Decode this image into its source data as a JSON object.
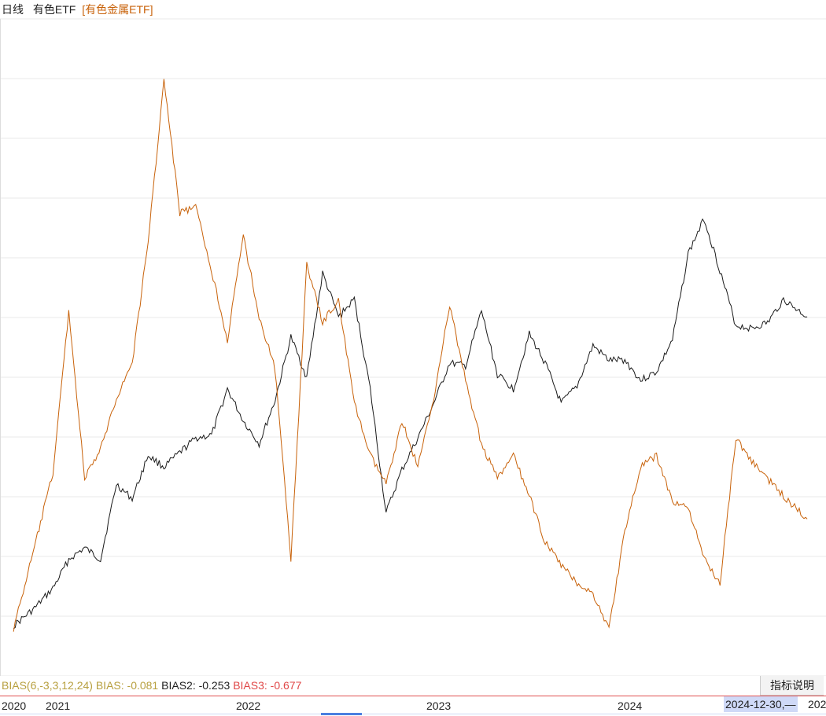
{
  "header": {
    "period": "日线",
    "name": "有色ETF",
    "compare": "[有色金属ETF]"
  },
  "indicator": {
    "name": "BIAS(6,-3,3,12,24)",
    "bias1": "BIAS: -0.081",
    "bias2": "BIAS2: -0.253",
    "bias3": "BIAS3: -0.677",
    "help_label": "指标说明"
  },
  "xaxis": {
    "ticks": [
      "2020",
      "2021",
      "2022",
      "2023",
      "2024",
      "202"
    ],
    "cursor_date": "2024-12-30,—"
  },
  "colors": {
    "primary_series": "#1a1a1a",
    "compare_series": "#c8620a",
    "grid": "#e8e8e8",
    "axis_line": "#e05050",
    "cursor_highlight": "#cfd9f7"
  },
  "chart_data": {
    "type": "line",
    "x_start": "2020",
    "x_end": "2024-12-30",
    "x_ticks": [
      "2020",
      "2021",
      "2022",
      "2023",
      "2024"
    ],
    "grid": "horizontal",
    "series": [
      {
        "name": "有色ETF",
        "color": "#1a1a1a",
        "points": [
          [
            "2020-11",
            0.005
          ],
          [
            "2020-12",
            0.035
          ],
          [
            "2021-01",
            0.07
          ],
          [
            "2021-02",
            0.12
          ],
          [
            "2021-03",
            0.14
          ],
          [
            "2021-04",
            0.12
          ],
          [
            "2021-05",
            0.25
          ],
          [
            "2021-06",
            0.225
          ],
          [
            "2021-07",
            0.3
          ],
          [
            "2021-08",
            0.28
          ],
          [
            "2021-09",
            0.305
          ],
          [
            "2021-10",
            0.33
          ],
          [
            "2021-11",
            0.335
          ],
          [
            "2021-12",
            0.415
          ],
          [
            "2022-01",
            0.36
          ],
          [
            "2022-02",
            0.32
          ],
          [
            "2022-03",
            0.395
          ],
          [
            "2022-04",
            0.505
          ],
          [
            "2022-05",
            0.435
          ],
          [
            "2022-06",
            0.615
          ],
          [
            "2022-07",
            0.54
          ],
          [
            "2022-08",
            0.57
          ],
          [
            "2022-09",
            0.415
          ],
          [
            "2022-10",
            0.2
          ],
          [
            "2022-11",
            0.275
          ],
          [
            "2022-12",
            0.33
          ],
          [
            "2023-01",
            0.39
          ],
          [
            "2023-02",
            0.46
          ],
          [
            "2023-03",
            0.455
          ],
          [
            "2023-04",
            0.55
          ],
          [
            "2023-05",
            0.44
          ],
          [
            "2023-06",
            0.415
          ],
          [
            "2023-07",
            0.51
          ],
          [
            "2023-08",
            0.46
          ],
          [
            "2023-09",
            0.39
          ],
          [
            "2023-10",
            0.42
          ],
          [
            "2023-11",
            0.49
          ],
          [
            "2023-12",
            0.465
          ],
          [
            "2024-01",
            0.465
          ],
          [
            "2024-02",
            0.43
          ],
          [
            "2024-03",
            0.445
          ],
          [
            "2024-04",
            0.5
          ],
          [
            "2024-05",
            0.65
          ],
          [
            "2024-06",
            0.71
          ],
          [
            "2024-07",
            0.62
          ],
          [
            "2024-08",
            0.525
          ],
          [
            "2024-09",
            0.52
          ],
          [
            "2024-10",
            0.53
          ],
          [
            "2024-11",
            0.57
          ],
          [
            "2024-12-30",
            0.54
          ]
        ]
      },
      {
        "name": "有色金属ETF",
        "color": "#c8620a",
        "points": [
          [
            "2020-11",
            0.0
          ],
          [
            "2020-12",
            0.14
          ],
          [
            "2021-01",
            0.27
          ],
          [
            "2021-02",
            0.55
          ],
          [
            "2021-03",
            0.26
          ],
          [
            "2021-04",
            0.31
          ],
          [
            "2021-05",
            0.4
          ],
          [
            "2021-06",
            0.46
          ],
          [
            "2021-07",
            0.67
          ],
          [
            "2021-08",
            0.95
          ],
          [
            "2021-09",
            0.72
          ],
          [
            "2021-10",
            0.73
          ],
          [
            "2021-11",
            0.62
          ],
          [
            "2021-12",
            0.5
          ],
          [
            "2022-01",
            0.68
          ],
          [
            "2022-02",
            0.54
          ],
          [
            "2022-03",
            0.45
          ],
          [
            "2022-04",
            0.12
          ],
          [
            "2022-05",
            0.63
          ],
          [
            "2022-06",
            0.53
          ],
          [
            "2022-07",
            0.57
          ],
          [
            "2022-08",
            0.39
          ],
          [
            "2022-09",
            0.3
          ],
          [
            "2022-10",
            0.25
          ],
          [
            "2022-11",
            0.36
          ],
          [
            "2022-12",
            0.28
          ],
          [
            "2023-01",
            0.4
          ],
          [
            "2023-02",
            0.56
          ],
          [
            "2023-03",
            0.43
          ],
          [
            "2023-04",
            0.32
          ],
          [
            "2023-05",
            0.26
          ],
          [
            "2023-06",
            0.3
          ],
          [
            "2023-07",
            0.23
          ],
          [
            "2023-08",
            0.15
          ],
          [
            "2023-09",
            0.11
          ],
          [
            "2023-10",
            0.08
          ],
          [
            "2023-11",
            0.06
          ],
          [
            "2023-12",
            0.0
          ],
          [
            "2024-01",
            0.17
          ],
          [
            "2024-02",
            0.28
          ],
          [
            "2024-03",
            0.3
          ],
          [
            "2024-04",
            0.22
          ],
          [
            "2024-05",
            0.21
          ],
          [
            "2024-06",
            0.12
          ],
          [
            "2024-07",
            0.08
          ],
          [
            "2024-08",
            0.33
          ],
          [
            "2024-09",
            0.29
          ],
          [
            "2024-10",
            0.26
          ],
          [
            "2024-11",
            0.23
          ],
          [
            "2024-12-30",
            0.19
          ]
        ]
      }
    ]
  }
}
